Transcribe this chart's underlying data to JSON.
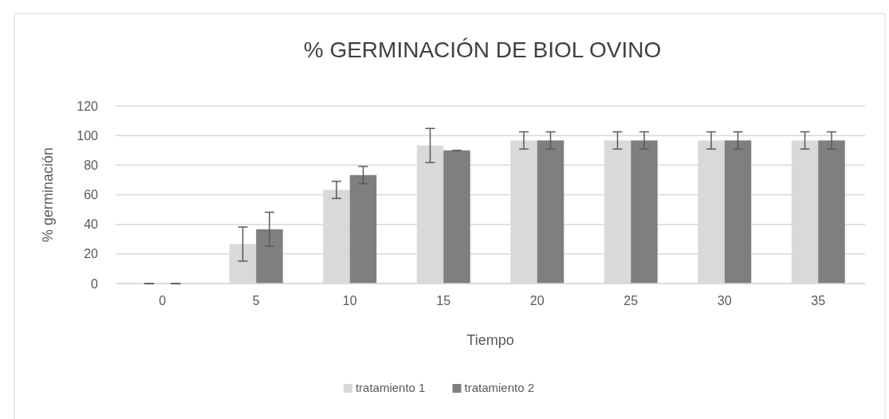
{
  "chart_data": {
    "type": "bar",
    "title": "% GERMINACIÓN DE BIOL OVINO",
    "xlabel": "Tiempo",
    "ylabel": "% germinación",
    "categories": [
      "0",
      "5",
      "10",
      "15",
      "20",
      "25",
      "30",
      "35"
    ],
    "series": [
      {
        "name": "tratamiento 1",
        "color": "#d9d9d9",
        "values": [
          0,
          26.7,
          63.3,
          93.3,
          96.7,
          96.7,
          96.7,
          96.7
        ],
        "errors": [
          0,
          11.5,
          5.8,
          11.5,
          5.8,
          5.8,
          5.8,
          5.8
        ]
      },
      {
        "name": "tratamiento 2",
        "color": "#7f7f7f",
        "values": [
          0,
          36.7,
          73.3,
          90,
          96.7,
          96.7,
          96.7,
          96.7
        ],
        "errors": [
          0,
          11.5,
          5.8,
          0,
          5.8,
          5.8,
          5.8,
          5.8
        ]
      }
    ],
    "ylim": [
      0,
      120
    ],
    "yticks": [
      0,
      20,
      40,
      60,
      80,
      100,
      120
    ],
    "grid": "y",
    "legend": "bottom"
  }
}
